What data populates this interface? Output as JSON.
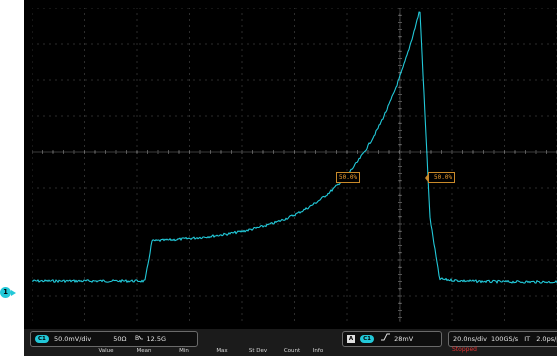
{
  "cursors": {
    "left_label": "50.0%",
    "right_label": "50.0%"
  },
  "ground_marker": {
    "label": "1",
    "color": "#22c8d8"
  },
  "channel_panel": {
    "badge": "C1",
    "vertical_scale": "50.0mV/div",
    "impedance": "50Ω",
    "bandwidth": "12.5G",
    "bandwidth_icon": "bandwidth-limit-icon"
  },
  "trigger_panel": {
    "icon_label": "A",
    "badge": "C1",
    "slope_icon": "rising-edge-icon",
    "level": "28mV"
  },
  "timebase_panel": {
    "horizontal_scale": "20.0ns/div",
    "sample_rate": "100GS/s",
    "mode": "IT",
    "resolution": "2.0ps/pt"
  },
  "acquisition_status": "Stopped",
  "measurement_table": {
    "columns": [
      "",
      "Value",
      "Mean",
      "Min",
      "Max",
      "St Dev",
      "Count",
      "Info"
    ]
  },
  "colors": {
    "trace": "#22c8d8",
    "cursor": "#f0a030",
    "grid": "#5a5a5a",
    "background": "#000000",
    "stopped": "#e03030"
  }
}
